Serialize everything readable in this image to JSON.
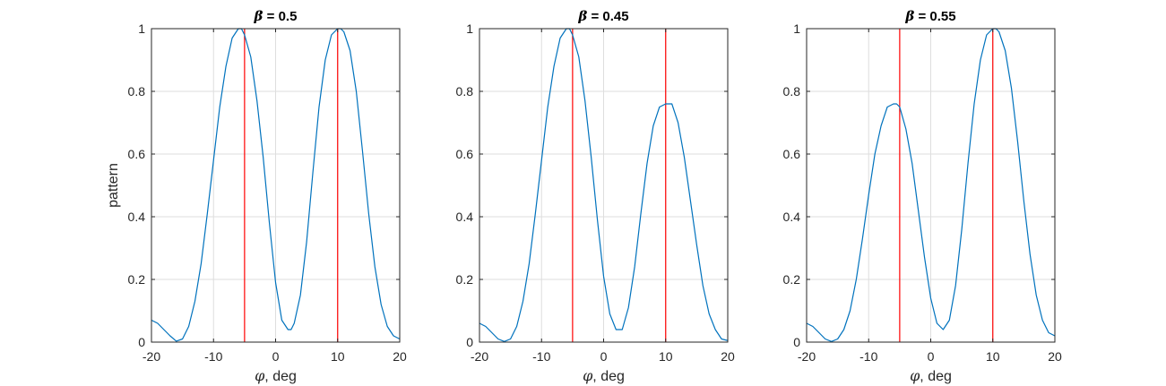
{
  "figure": {
    "ylabel_text": "pattern",
    "xlabel_symbol": "φ",
    "xlabel_rest": ", deg",
    "title_symbol": "β",
    "colors": {
      "curve": "#0072BD",
      "marker_lines": "#FF0000",
      "grid": "#DEDEDE",
      "axes": "#262626"
    }
  },
  "chart_data": [
    {
      "type": "line",
      "title": "β = 0.5",
      "title_value": " = 0.5",
      "xlabel": "φ, deg",
      "ylabel": "pattern",
      "xlim": [
        -20,
        20
      ],
      "ylim": [
        0,
        1
      ],
      "xticks": [
        -20,
        -10,
        0,
        10,
        20
      ],
      "yticks": [
        0,
        0.2,
        0.4,
        0.6,
        0.8,
        1
      ],
      "grid": true,
      "vlines": [
        -5,
        10
      ],
      "series": [
        {
          "x": [
            -20,
            -19,
            -18,
            -17,
            -16,
            -15,
            -14,
            -13,
            -12,
            -11,
            -10,
            -9,
            -8,
            -7,
            -6,
            -5.5,
            -5,
            -4,
            -3,
            -2,
            -1,
            0,
            1,
            2,
            2.5,
            3,
            4,
            5,
            6,
            7,
            8,
            9,
            10,
            10.5,
            11,
            12,
            13,
            14,
            15,
            16,
            17,
            18,
            19,
            20
          ],
          "y": [
            0.07,
            0.06,
            0.04,
            0.02,
            0.003,
            0.01,
            0.05,
            0.13,
            0.25,
            0.41,
            0.58,
            0.75,
            0.88,
            0.97,
            1.0,
            1.0,
            0.98,
            0.91,
            0.77,
            0.59,
            0.38,
            0.19,
            0.07,
            0.04,
            0.04,
            0.06,
            0.15,
            0.32,
            0.54,
            0.75,
            0.9,
            0.98,
            1.0,
            1.0,
            0.99,
            0.93,
            0.8,
            0.61,
            0.41,
            0.24,
            0.12,
            0.05,
            0.02,
            0.01
          ]
        }
      ]
    },
    {
      "type": "line",
      "title": "β = 0.45",
      "title_value": " = 0.45",
      "xlabel": "φ, deg",
      "ylabel": "",
      "xlim": [
        -20,
        20
      ],
      "ylim": [
        0,
        1
      ],
      "xticks": [
        -20,
        -10,
        0,
        10,
        20
      ],
      "yticks": [
        0,
        0.2,
        0.4,
        0.6,
        0.8,
        1
      ],
      "grid": true,
      "vlines": [
        -5,
        10
      ],
      "series": [
        {
          "x": [
            -20,
            -19,
            -18,
            -17,
            -16,
            -15,
            -14,
            -13,
            -12,
            -11,
            -10,
            -9,
            -8,
            -7,
            -6,
            -5.5,
            -5,
            -4,
            -3,
            -2,
            -1,
            0,
            1,
            2,
            3,
            4,
            5,
            6,
            7,
            8,
            9,
            10,
            11,
            12,
            13,
            14,
            15,
            16,
            17,
            18,
            19,
            20
          ],
          "y": [
            0.06,
            0.05,
            0.03,
            0.01,
            0.002,
            0.01,
            0.05,
            0.13,
            0.25,
            0.41,
            0.58,
            0.75,
            0.88,
            0.97,
            1.0,
            1.0,
            0.98,
            0.91,
            0.77,
            0.59,
            0.39,
            0.21,
            0.09,
            0.04,
            0.04,
            0.11,
            0.24,
            0.41,
            0.57,
            0.69,
            0.75,
            0.76,
            0.76,
            0.7,
            0.59,
            0.45,
            0.31,
            0.18,
            0.09,
            0.04,
            0.01,
            0.005
          ]
        }
      ]
    },
    {
      "type": "line",
      "title": "β = 0.55",
      "title_value": " = 0.55",
      "xlabel": "φ, deg",
      "ylabel": "",
      "xlim": [
        -20,
        20
      ],
      "ylim": [
        0,
        1
      ],
      "xticks": [
        -20,
        -10,
        0,
        10,
        20
      ],
      "yticks": [
        0,
        0.2,
        0.4,
        0.6,
        0.8,
        1
      ],
      "grid": true,
      "vlines": [
        -5,
        10
      ],
      "series": [
        {
          "x": [
            -20,
            -19,
            -18,
            -17,
            -16,
            -15,
            -14,
            -13,
            -12,
            -11,
            -10,
            -9,
            -8,
            -7,
            -6,
            -5.5,
            -5,
            -4,
            -3,
            -2,
            -1,
            0,
            1,
            2,
            3,
            4,
            5,
            6,
            7,
            8,
            9,
            10,
            10.5,
            11,
            12,
            13,
            14,
            15,
            16,
            17,
            18,
            19,
            20
          ],
          "y": [
            0.06,
            0.05,
            0.03,
            0.01,
            0.002,
            0.01,
            0.04,
            0.1,
            0.2,
            0.33,
            0.47,
            0.6,
            0.69,
            0.75,
            0.76,
            0.76,
            0.75,
            0.68,
            0.57,
            0.42,
            0.27,
            0.14,
            0.06,
            0.04,
            0.07,
            0.18,
            0.36,
            0.57,
            0.76,
            0.9,
            0.98,
            1.0,
            1.0,
            0.99,
            0.93,
            0.81,
            0.64,
            0.45,
            0.28,
            0.15,
            0.07,
            0.03,
            0.02
          ]
        }
      ]
    }
  ]
}
